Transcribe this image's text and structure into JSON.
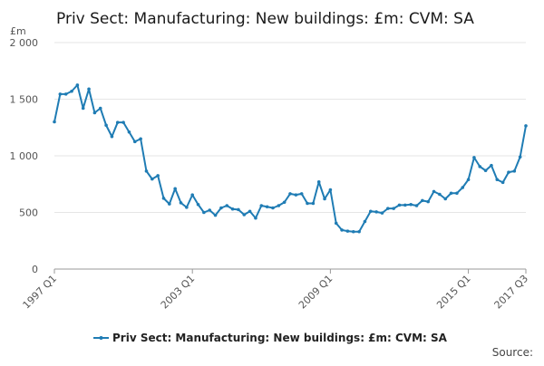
{
  "chart_data": {
    "type": "line",
    "title": "Priv Sect: Manufacturing: New buildings: £m: CVM: SA",
    "unit_label": "£m",
    "ylim": [
      0,
      2000
    ],
    "yticks": [
      0,
      500,
      1000,
      1500,
      2000
    ],
    "ytick_labels": [
      "0",
      "500",
      "1 000",
      "1 500",
      "2 000"
    ],
    "xtick_labels": [
      "1997 Q1",
      "2003 Q1",
      "2009 Q1",
      "2015 Q1",
      "2017 Q3"
    ],
    "xtick_indices": [
      0,
      24,
      48,
      72,
      82
    ],
    "grid": true,
    "legend_position": "bottom",
    "source_label": "Source:",
    "line_color": "#1f7cb4",
    "series": [
      {
        "name": "Priv Sect: Manufacturing: New buildings: £m: CVM: SA",
        "x": [
          "1997 Q1",
          "1997 Q2",
          "1997 Q3",
          "1997 Q4",
          "1998 Q1",
          "1998 Q2",
          "1998 Q3",
          "1998 Q4",
          "1999 Q1",
          "1999 Q2",
          "1999 Q3",
          "1999 Q4",
          "2000 Q1",
          "2000 Q2",
          "2000 Q3",
          "2000 Q4",
          "2001 Q1",
          "2001 Q2",
          "2001 Q3",
          "2001 Q4",
          "2002 Q1",
          "2002 Q2",
          "2002 Q3",
          "2002 Q4",
          "2003 Q1",
          "2003 Q2",
          "2003 Q3",
          "2003 Q4",
          "2004 Q1",
          "2004 Q2",
          "2004 Q3",
          "2004 Q4",
          "2005 Q1",
          "2005 Q2",
          "2005 Q3",
          "2005 Q4",
          "2006 Q1",
          "2006 Q2",
          "2006 Q3",
          "2006 Q4",
          "2007 Q1",
          "2007 Q2",
          "2007 Q3",
          "2007 Q4",
          "2008 Q1",
          "2008 Q2",
          "2008 Q3",
          "2008 Q4",
          "2009 Q1",
          "2009 Q2",
          "2009 Q3",
          "2009 Q4",
          "2010 Q1",
          "2010 Q2",
          "2010 Q3",
          "2010 Q4",
          "2011 Q1",
          "2011 Q2",
          "2011 Q3",
          "2011 Q4",
          "2012 Q1",
          "2012 Q2",
          "2012 Q3",
          "2012 Q4",
          "2013 Q1",
          "2013 Q2",
          "2013 Q3",
          "2013 Q4",
          "2014 Q1",
          "2014 Q2",
          "2014 Q3",
          "2014 Q4",
          "2015 Q1",
          "2015 Q2",
          "2015 Q3",
          "2015 Q4",
          "2016 Q1",
          "2016 Q2",
          "2016 Q3",
          "2016 Q4",
          "2017 Q1",
          "2017 Q2",
          "2017 Q3"
        ],
        "values": [
          1300,
          1545,
          1545,
          1570,
          1625,
          1420,
          1590,
          1380,
          1420,
          1270,
          1170,
          1295,
          1295,
          1210,
          1125,
          1150,
          865,
          795,
          825,
          625,
          575,
          710,
          585,
          545,
          655,
          570,
          500,
          520,
          475,
          540,
          560,
          530,
          525,
          480,
          510,
          450,
          560,
          550,
          540,
          560,
          590,
          665,
          655,
          665,
          580,
          580,
          770,
          620,
          700,
          405,
          345,
          335,
          330,
          330,
          420,
          510,
          505,
          495,
          535,
          535,
          565,
          565,
          570,
          560,
          605,
          595,
          685,
          660,
          620,
          670,
          670,
          720,
          790,
          985,
          905,
          870,
          915,
          790,
          765,
          855,
          865,
          990,
          1265
        ]
      }
    ]
  }
}
